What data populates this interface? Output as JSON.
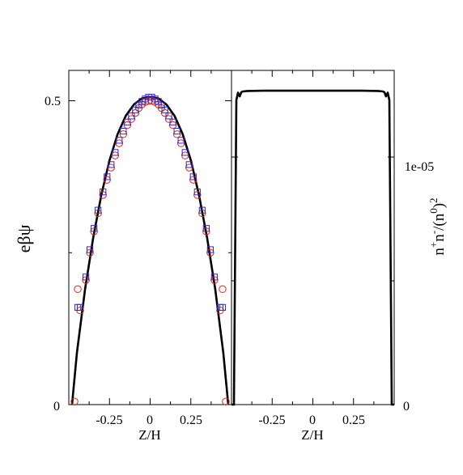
{
  "chart_data": [
    {
      "type": "line",
      "xlabel": "Z/H",
      "ylabel": "eβψ",
      "xlim": [
        -0.5,
        0.5
      ],
      "ylim": [
        0,
        0.55
      ],
      "xticks": [
        -0.25,
        0,
        0.25
      ],
      "xtick_labels": [
        "-0.25",
        "0",
        "0.25"
      ],
      "yticks": [
        0,
        0.5
      ],
      "ytick_labels": [
        "0",
        "0.5"
      ],
      "series": [
        {
          "style": "line",
          "color": "#000000",
          "x": [
            -0.48,
            -0.45,
            -0.4,
            -0.35,
            -0.3,
            -0.25,
            -0.2,
            -0.15,
            -0.1,
            -0.05,
            0,
            0.05,
            0.1,
            0.15,
            0.2,
            0.25,
            0.3,
            0.35,
            0.4,
            0.45,
            0.48
          ],
          "y": [
            0,
            0.085,
            0.19,
            0.275,
            0.345,
            0.402,
            0.445,
            0.475,
            0.494,
            0.504,
            0.506,
            0.504,
            0.494,
            0.475,
            0.445,
            0.402,
            0.345,
            0.275,
            0.19,
            0.085,
            0
          ]
        },
        {
          "style": "circle-markers",
          "color": "#e8201a",
          "x": [
            -0.465,
            -0.445,
            -0.43,
            -0.395,
            -0.37,
            -0.345,
            -0.32,
            -0.29,
            -0.265,
            -0.24,
            -0.215,
            -0.19,
            -0.165,
            -0.14,
            -0.115,
            -0.09,
            -0.07,
            -0.05,
            -0.03,
            -0.01,
            0.01,
            0.03,
            0.05,
            0.07,
            0.09,
            0.115,
            0.14,
            0.165,
            0.19,
            0.215,
            0.24,
            0.265,
            0.29,
            0.32,
            0.345,
            0.37,
            0.395,
            0.43,
            0.445,
            0.465
          ],
          "y": [
            0.005,
            0.19,
            0.155,
            0.205,
            0.25,
            0.285,
            0.315,
            0.345,
            0.37,
            0.39,
            0.41,
            0.43,
            0.445,
            0.46,
            0.47,
            0.48,
            0.488,
            0.494,
            0.498,
            0.5,
            0.5,
            0.498,
            0.494,
            0.488,
            0.48,
            0.47,
            0.46,
            0.445,
            0.43,
            0.41,
            0.39,
            0.37,
            0.345,
            0.315,
            0.285,
            0.25,
            0.205,
            0.155,
            0.19,
            0.005
          ]
        },
        {
          "style": "square-markers",
          "color": "#2b2bc4",
          "x": [
            -0.445,
            -0.43,
            -0.395,
            -0.37,
            -0.345,
            -0.32,
            -0.29,
            -0.265,
            -0.24,
            -0.215,
            -0.19,
            -0.165,
            -0.14,
            -0.115,
            -0.09,
            -0.07,
            -0.05,
            -0.03,
            -0.01,
            0.01,
            0.03,
            0.05,
            0.07,
            0.09,
            0.115,
            0.14,
            0.165,
            0.19,
            0.215,
            0.24,
            0.265,
            0.29,
            0.32,
            0.345,
            0.37,
            0.395,
            0.43,
            0.445
          ],
          "y": [
            0.16,
            0.16,
            0.21,
            0.255,
            0.29,
            0.32,
            0.35,
            0.375,
            0.395,
            0.415,
            0.435,
            0.45,
            0.465,
            0.475,
            0.485,
            0.493,
            0.499,
            0.503,
            0.506,
            0.506,
            0.503,
            0.499,
            0.493,
            0.485,
            0.475,
            0.465,
            0.45,
            0.435,
            0.415,
            0.395,
            0.375,
            0.35,
            0.32,
            0.29,
            0.255,
            0.21,
            0.16,
            0.16
          ]
        }
      ]
    },
    {
      "type": "line",
      "xlabel": "Z/H",
      "ylabel": "n⁺n⁻/(n₀²)",
      "ylabel_parts": {
        "n1": "n",
        "sup_plus": "+",
        "n2": "n",
        "sup_minus": "-",
        "open": "/(n",
        "sup_zero": "0",
        "sup_two": "2",
        "close": ")"
      },
      "xlim": [
        -0.5,
        0.5
      ],
      "ylim": [
        0,
        1.35e-05
      ],
      "xticks": [
        -0.25,
        0,
        0.25
      ],
      "xtick_labels": [
        "-0.25",
        "0",
        "0.25"
      ],
      "yticks": [
        0,
        1e-05
      ],
      "ytick_labels": [
        "0",
        "1e-05"
      ],
      "y_axis_side": "right",
      "series": [
        {
          "style": "line",
          "color": "#000000",
          "x": [
            -0.5,
            -0.485,
            -0.47,
            -0.46,
            -0.45,
            -0.44,
            -0.43,
            -0.4,
            -0.3,
            -0.2,
            -0.1,
            0,
            0.1,
            0.2,
            0.3,
            0.4,
            0.43,
            0.44,
            0.45,
            0.46,
            0.47,
            0.485,
            0.5
          ],
          "y": [
            0,
            0,
            1.23e-05,
            1.26e-05,
            1.245e-05,
            1.262e-05,
            1.265e-05,
            1.267e-05,
            1.268e-05,
            1.268e-05,
            1.268e-05,
            1.268e-05,
            1.268e-05,
            1.268e-05,
            1.268e-05,
            1.267e-05,
            1.265e-05,
            1.262e-05,
            1.245e-05,
            1.26e-05,
            1.23e-05,
            0,
            0
          ]
        }
      ]
    }
  ]
}
